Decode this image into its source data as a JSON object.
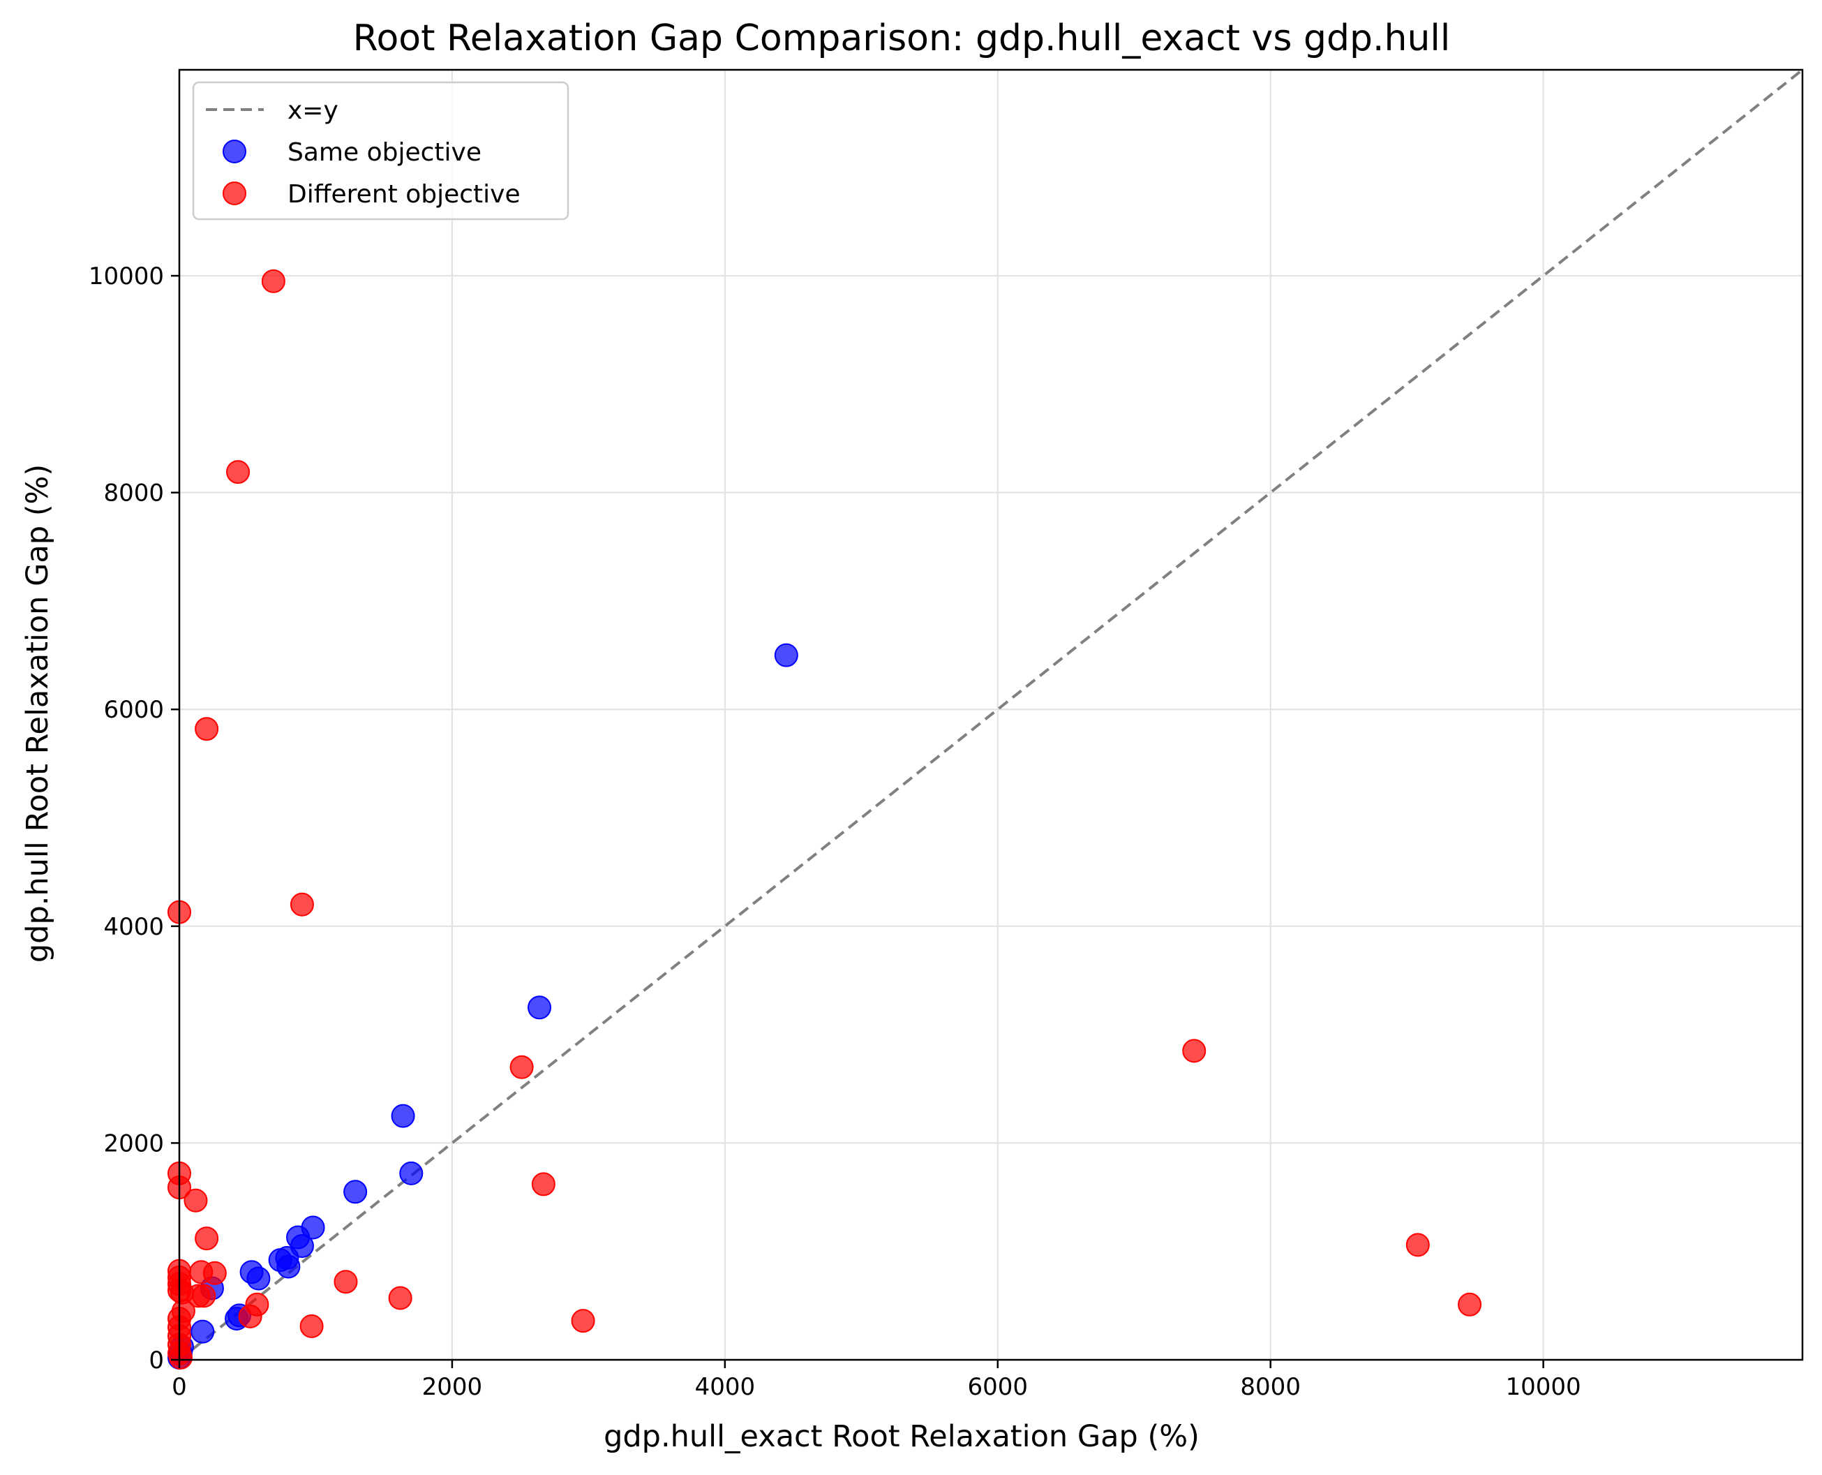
{
  "chart_data": {
    "type": "scatter",
    "title": "Root Relaxation Gap Comparison: gdp.hull_exact vs gdp.hull",
    "xlabel": "gdp.hull_exact Root Relaxation Gap (%)",
    "ylabel": "gdp.hull Root Relaxation Gap (%)",
    "xlim": [
      0,
      11900
    ],
    "ylim": [
      0,
      11900
    ],
    "xticks": [
      0,
      2000,
      4000,
      6000,
      8000,
      10000
    ],
    "yticks": [
      0,
      2000,
      4000,
      6000,
      8000,
      10000
    ],
    "grid": true,
    "legend_position": "top-left",
    "reference_line": {
      "name": "x=y",
      "color": "#808080",
      "style": "dashed"
    },
    "series": [
      {
        "name": "Same objective",
        "color": "#0000ff",
        "points": [
          [
            4450,
            6500
          ],
          [
            2640,
            3250
          ],
          [
            1640,
            2250
          ],
          [
            1700,
            1720
          ],
          [
            1290,
            1550
          ],
          [
            980,
            1220
          ],
          [
            870,
            1130
          ],
          [
            900,
            1050
          ],
          [
            740,
            920
          ],
          [
            790,
            940
          ],
          [
            800,
            860
          ],
          [
            530,
            810
          ],
          [
            580,
            750
          ],
          [
            240,
            660
          ],
          [
            420,
            380
          ],
          [
            440,
            410
          ],
          [
            170,
            260
          ],
          [
            20,
            120
          ],
          [
            10,
            60
          ],
          [
            0,
            20
          ]
        ]
      },
      {
        "name": "Different objective",
        "color": "#ff0000",
        "points": [
          [
            690,
            9950
          ],
          [
            430,
            8190
          ],
          [
            200,
            5820
          ],
          [
            900,
            4200
          ],
          [
            0,
            4130
          ],
          [
            7440,
            2850
          ],
          [
            2510,
            2700
          ],
          [
            2670,
            1620
          ],
          [
            0,
            1720
          ],
          [
            0,
            1590
          ],
          [
            120,
            1470
          ],
          [
            200,
            1120
          ],
          [
            9080,
            1060
          ],
          [
            160,
            810
          ],
          [
            260,
            800
          ],
          [
            0,
            820
          ],
          [
            0,
            760
          ],
          [
            0,
            700
          ],
          [
            0,
            640
          ],
          [
            20,
            620
          ],
          [
            140,
            590
          ],
          [
            180,
            590
          ],
          [
            1220,
            720
          ],
          [
            1620,
            570
          ],
          [
            570,
            510
          ],
          [
            9460,
            510
          ],
          [
            520,
            400
          ],
          [
            2960,
            360
          ],
          [
            970,
            310
          ],
          [
            30,
            450
          ],
          [
            0,
            380
          ],
          [
            0,
            300
          ],
          [
            0,
            220
          ],
          [
            0,
            140
          ],
          [
            0,
            60
          ],
          [
            10,
            20
          ]
        ]
      }
    ]
  }
}
